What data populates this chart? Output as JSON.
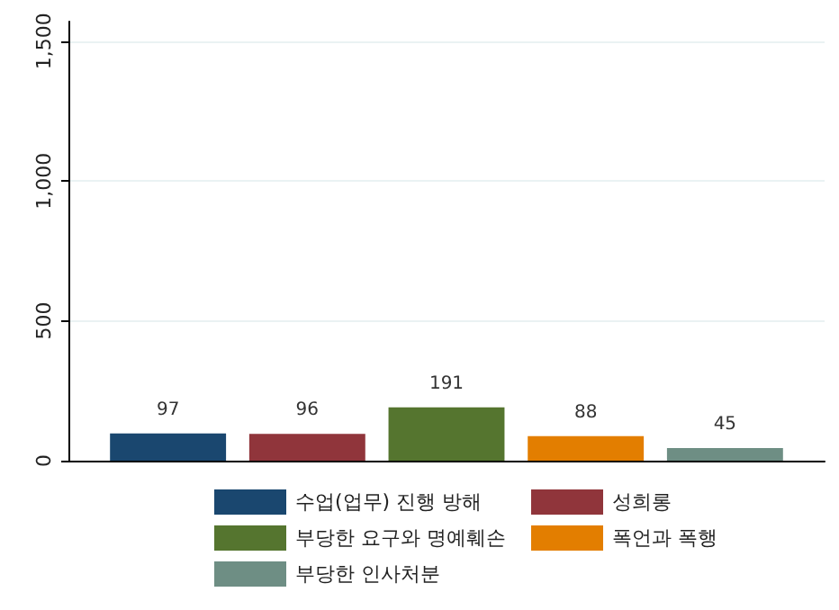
{
  "chart_data": {
    "type": "bar",
    "categories": [
      null
    ],
    "series": [
      {
        "name": "수업(업무) 진행 방해",
        "color": "#1a476f",
        "values": [
          97
        ]
      },
      {
        "name": "성희롱",
        "color": "#90353b",
        "values": [
          96
        ]
      },
      {
        "name": "부당한 요구와 명예훼손",
        "color": "#55752f",
        "values": [
          191
        ]
      },
      {
        "name": "폭언과 폭행",
        "color": "#e37e00",
        "values": [
          88
        ]
      },
      {
        "name": "부당한 인사처분",
        "color": "#6e8e84",
        "values": [
          45
        ]
      }
    ],
    "ylim": [
      0,
      1570
    ],
    "yticks": [
      0,
      500,
      {
        "value": 1000,
        "label": "1,000"
      },
      {
        "value": 1500,
        "label": "1,500"
      }
    ],
    "grid": "y",
    "legend": "bottom",
    "data_labels": true,
    "tick_labels": "y"
  }
}
